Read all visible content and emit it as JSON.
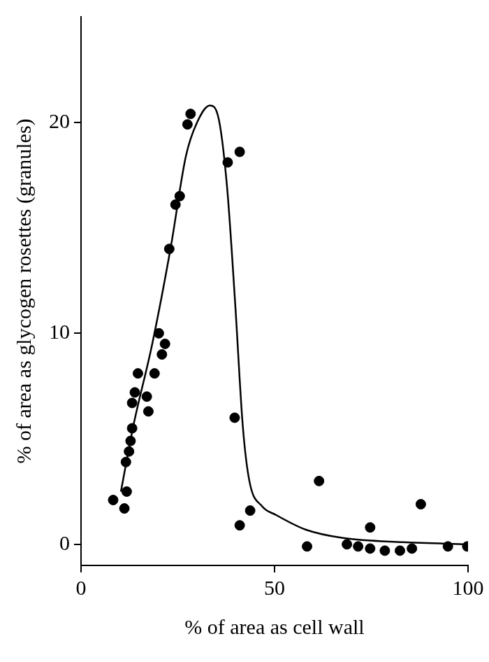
{
  "chart_data": {
    "type": "scatter",
    "x_label": "% of area as cell wall",
    "y_label": "% of area as glycogen rosettes (granules)",
    "xlim": [
      0,
      100
    ],
    "xticks": [
      0,
      50,
      100
    ],
    "ylim": [
      -1,
      25
    ],
    "yticks": [
      0,
      10,
      20
    ],
    "grid": false,
    "series": [
      {
        "type": "scatter",
        "marker": "circle",
        "color": "#000000",
        "x": [
          8.3,
          11.2,
          11.8,
          11.6,
          12.4,
          12.8,
          13.2,
          13.2,
          13.9,
          14.7,
          17.0,
          17.4,
          19.0,
          20.1,
          20.9,
          21.7,
          22.8,
          24.4,
          25.5,
          27.5,
          28.3,
          37.9,
          41.0,
          39.7,
          41.0,
          43.7,
          58.4,
          61.5,
          68.7,
          71.6,
          74.7,
          74.7,
          78.5,
          82.4,
          85.5,
          87.8,
          94.8,
          99.8
        ],
        "values": [
          2.1,
          1.7,
          2.5,
          3.9,
          4.4,
          4.9,
          5.5,
          6.7,
          7.2,
          8.1,
          7.0,
          6.3,
          8.1,
          10.0,
          9.0,
          9.5,
          14.0,
          16.1,
          16.5,
          19.9,
          20.4,
          18.1,
          18.6,
          6.0,
          0.9,
          1.6,
          -0.1,
          3.0,
          0,
          -0.1,
          0.8,
          -0.2,
          -0.3,
          -0.3,
          -0.2,
          1.9,
          -0.1,
          -0.1
        ]
      },
      {
        "type": "line",
        "line_style": "solid",
        "color": "#000000",
        "x": [
          10.3,
          13.5,
          18.4,
          23.2,
          27.1,
          30.0,
          33.3,
          35.4,
          37.7,
          39.8,
          41.8,
          43.5,
          46.8,
          50.3,
          58.0,
          67.7,
          83.2,
          100
        ],
        "values": [
          2.5,
          5.6,
          9.5,
          14.1,
          18.4,
          20.0,
          20.8,
          20.3,
          17.0,
          11.5,
          5.6,
          3.0,
          1.8,
          1.4,
          0.7,
          0.3,
          0.1,
          0
        ]
      }
    ]
  }
}
